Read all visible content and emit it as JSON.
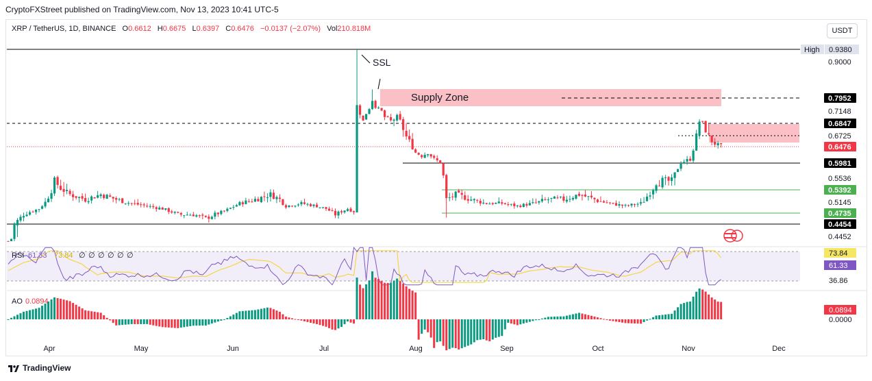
{
  "header": {
    "published": "CryptoFXStreet published on TradingView.com, Nov 13, 2023 10:41 UTC-5",
    "symbol": "XRP / TetherUS, 1D, BINANCE",
    "o_label": "O",
    "o": "0.6612",
    "h_label": "H",
    "h": "0.6675",
    "l_label": "L",
    "l": "0.6397",
    "c_label": "C",
    "c": "0.6476",
    "change": "−0.0137 (−2.07%)",
    "vol_label": "Vol",
    "vol": "210.818M",
    "currency_button": "USDT"
  },
  "brand": "TradingView",
  "colors": {
    "up": "#089981",
    "down": "#f23645",
    "supply_zone": "#f8a5ad",
    "green_line": "#4caf50",
    "rsi_line": "#7e57c2",
    "rsi_ma": "#f5d547",
    "rsi_band": "#ede7f6"
  },
  "chart_data": [
    {
      "type": "candlestick",
      "name": "price",
      "x": [
        "Apr",
        "May",
        "Jun",
        "Jul",
        "Aug",
        "Sep",
        "Oct",
        "Nov",
        "Dec"
      ],
      "ylim": [
        0.43,
        0.96
      ],
      "close_path": [
        [
          0,
          0.43
        ],
        [
          5,
          0.47
        ],
        [
          10,
          0.49
        ],
        [
          15,
          0.55
        ],
        [
          20,
          0.53
        ],
        [
          25,
          0.52
        ],
        [
          30,
          0.53
        ],
        [
          35,
          0.52
        ],
        [
          40,
          0.51
        ],
        [
          45,
          0.5
        ],
        [
          50,
          0.49
        ],
        [
          55,
          0.47
        ],
        [
          60,
          0.47
        ],
        [
          64,
          0.46
        ],
        [
          70,
          0.48
        ],
        [
          75,
          0.51
        ],
        [
          80,
          0.52
        ],
        [
          85,
          0.53
        ],
        [
          88,
          0.52
        ],
        [
          90,
          0.5
        ],
        [
          95,
          0.51
        ],
        [
          100,
          0.5
        ],
        [
          103,
          0.49
        ],
        [
          106,
          0.47
        ],
        [
          110,
          0.49
        ],
        [
          112,
          0.48
        ],
        [
          113,
          0.75
        ],
        [
          114,
          0.71
        ],
        [
          115,
          0.69
        ],
        [
          117,
          0.73
        ],
        [
          118,
          0.78
        ],
        [
          119,
          0.74
        ],
        [
          120,
          0.73
        ],
        [
          122,
          0.7
        ],
        [
          124,
          0.69
        ],
        [
          126,
          0.7
        ],
        [
          128,
          0.68
        ],
        [
          130,
          0.66
        ],
        [
          132,
          0.63
        ],
        [
          134,
          0.62
        ],
        [
          136,
          0.63
        ],
        [
          138,
          0.61
        ],
        [
          140,
          0.6
        ],
        [
          142,
          0.52
        ],
        [
          145,
          0.53
        ],
        [
          150,
          0.52
        ],
        [
          155,
          0.51
        ],
        [
          160,
          0.51
        ],
        [
          165,
          0.5
        ],
        [
          170,
          0.51
        ],
        [
          175,
          0.52
        ],
        [
          180,
          0.52
        ],
        [
          185,
          0.53
        ],
        [
          190,
          0.52
        ],
        [
          195,
          0.51
        ],
        [
          200,
          0.5
        ],
        [
          205,
          0.51
        ],
        [
          210,
          0.55
        ],
        [
          215,
          0.55
        ],
        [
          218,
          0.6
        ],
        [
          221,
          0.61
        ],
        [
          223,
          0.67
        ],
        [
          224,
          0.69
        ],
        [
          226,
          0.68
        ],
        [
          228,
          0.66
        ],
        [
          230,
          0.65
        ],
        [
          231,
          0.6476
        ]
      ],
      "levels": [
        {
          "value": 0.938,
          "label": "0.9380",
          "prefix": "High",
          "style": "solid",
          "color": "#000000"
        },
        {
          "value": 0.9,
          "label": "0.9000",
          "style": "none"
        },
        {
          "value": 0.7952,
          "label": "0.7952",
          "style": "dashed",
          "color": "#000000"
        },
        {
          "value": 0.7148,
          "label": "0.7148",
          "style": "none"
        },
        {
          "value": 0.6847,
          "label": "0.6847",
          "style": "dashed",
          "color": "#000000"
        },
        {
          "value": 0.6725,
          "label": "0.6725",
          "style": "dotted",
          "color": "#000000"
        },
        {
          "value": 0.6476,
          "label": "0.6476",
          "style": "dotted",
          "color": "#f23645",
          "highlight": "#f23645"
        },
        {
          "value": 0.5981,
          "label": "0.5981",
          "style": "solid",
          "color": "#000000"
        },
        {
          "value": 0.5536,
          "label": "0.5536",
          "style": "none"
        },
        {
          "value": 0.5392,
          "label": "0.5392",
          "style": "solid",
          "color": "#4caf50",
          "highlight": "#4caf50"
        },
        {
          "value": 0.5145,
          "label": "0.5145",
          "style": "none"
        },
        {
          "value": 0.4735,
          "label": "0.4735",
          "style": "solid",
          "color": "#4caf50",
          "highlight": "#4caf50"
        },
        {
          "value": 0.4454,
          "label": "0.4454",
          "style": "solid",
          "color": "#000000"
        },
        {
          "value": 0.4452,
          "label": "0.4452",
          "style": "none"
        }
      ],
      "annotations": [
        {
          "text": "SSL",
          "kind": "label"
        },
        {
          "text": "Supply Zone",
          "kind": "zone",
          "from": 0.785,
          "to": 0.82
        }
      ]
    },
    {
      "type": "line",
      "name": "RSI",
      "legend": "RSI",
      "values_label": [
        "61.33",
        "73.84",
        "∅",
        "∅",
        "∅",
        "∅",
        "∅",
        "∅"
      ],
      "ylim": [
        30,
        80
      ],
      "band": [
        36.86,
        73.84
      ],
      "axis_labels": [
        "73.84",
        "61.33",
        "36.86"
      ]
    },
    {
      "type": "bar",
      "name": "AO",
      "legend": "AO",
      "value": "0.0894",
      "axis_labels": [
        "0.0894",
        "0.0000"
      ]
    }
  ]
}
